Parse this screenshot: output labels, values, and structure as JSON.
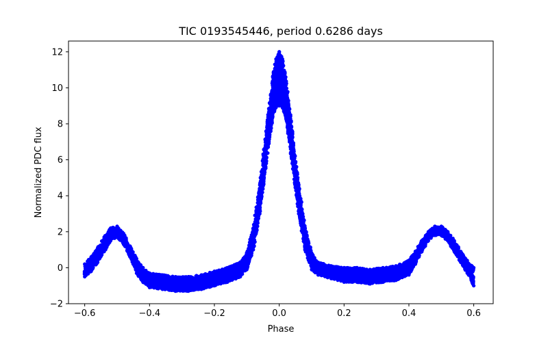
{
  "chart_data": {
    "type": "scatter",
    "title": "TIC 0193545446, period 0.6286 days",
    "xlabel": "Phase",
    "ylabel": "Normalized PDC flux",
    "xlim": [
      -0.65,
      0.66
    ],
    "ylim": [
      -2.0,
      12.6
    ],
    "xticks": [
      -0.6,
      -0.4,
      -0.2,
      0.0,
      0.2,
      0.4,
      0.6
    ],
    "xtick_labels": [
      "−0.6",
      "−0.4",
      "−0.2",
      "0.0",
      "0.2",
      "0.4",
      "0.6"
    ],
    "yticks": [
      -2,
      0,
      2,
      4,
      6,
      8,
      10,
      12
    ],
    "ytick_labels": [
      "−2",
      "0",
      "2",
      "4",
      "6",
      "8",
      "10",
      "12"
    ],
    "grid": false,
    "legend": "none",
    "marker_color": "#0000ff",
    "series": [
      {
        "upper": {
          "x": [
            -0.6,
            -0.58,
            -0.56,
            -0.54,
            -0.52,
            -0.5,
            -0.48,
            -0.46,
            -0.44,
            -0.42,
            -0.4,
            -0.36,
            -0.32,
            -0.28,
            -0.24,
            -0.2,
            -0.16,
            -0.12,
            -0.1,
            -0.08,
            -0.06,
            -0.04,
            -0.02,
            -0.01,
            0.0,
            0.01,
            0.02,
            0.04,
            0.06,
            0.08,
            0.1,
            0.12,
            0.16,
            0.2,
            0.24,
            0.28,
            0.32,
            0.36,
            0.4,
            0.42,
            0.44,
            0.46,
            0.48,
            0.5,
            0.52,
            0.54,
            0.56,
            0.58,
            0.6
          ],
          "y": [
            0.2,
            0.6,
            1.1,
            1.7,
            2.2,
            2.3,
            1.9,
            1.2,
            0.5,
            0.0,
            -0.3,
            -0.4,
            -0.5,
            -0.5,
            -0.4,
            -0.2,
            0.0,
            0.3,
            0.8,
            2.2,
            4.6,
            7.6,
            10.6,
            11.6,
            12.0,
            11.6,
            10.6,
            7.6,
            4.6,
            2.2,
            0.8,
            0.3,
            0.1,
            0.0,
            0.0,
            -0.1,
            0.0,
            0.1,
            0.4,
            0.9,
            1.5,
            2.0,
            2.3,
            2.3,
            2.0,
            1.5,
            0.9,
            0.4,
            0.0
          ]
        },
        "lower": {
          "x": [
            -0.6,
            -0.58,
            -0.56,
            -0.54,
            -0.52,
            -0.5,
            -0.48,
            -0.46,
            -0.44,
            -0.42,
            -0.4,
            -0.36,
            -0.32,
            -0.28,
            -0.24,
            -0.2,
            -0.16,
            -0.12,
            -0.1,
            -0.08,
            -0.06,
            -0.04,
            -0.02,
            -0.01,
            0.0,
            0.01,
            0.02,
            0.04,
            0.06,
            0.08,
            0.1,
            0.12,
            0.16,
            0.2,
            0.24,
            0.28,
            0.32,
            0.36,
            0.4,
            0.42,
            0.44,
            0.46,
            0.48,
            0.5,
            0.52,
            0.54,
            0.56,
            0.58,
            0.6
          ],
          "y": [
            -0.5,
            -0.2,
            0.3,
            0.9,
            1.5,
            1.7,
            1.3,
            0.6,
            -0.3,
            -0.8,
            -1.1,
            -1.2,
            -1.3,
            -1.3,
            -1.2,
            -1.0,
            -0.8,
            -0.5,
            -0.1,
            1.0,
            3.0,
            5.8,
            8.4,
            8.9,
            9.0,
            8.9,
            8.4,
            5.8,
            3.0,
            1.0,
            -0.1,
            -0.4,
            -0.6,
            -0.8,
            -0.8,
            -0.9,
            -0.8,
            -0.7,
            -0.4,
            0.2,
            0.9,
            1.5,
            1.8,
            1.8,
            1.5,
            0.9,
            0.3,
            -0.3,
            -1.0
          ]
        }
      }
    ]
  }
}
